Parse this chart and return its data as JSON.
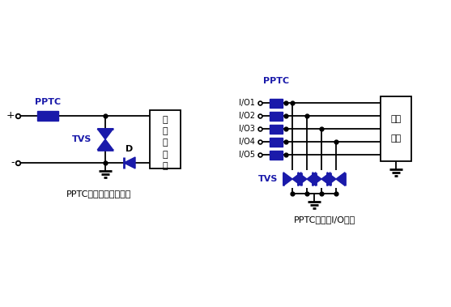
{
  "blue": "#1a1aaa",
  "line_color": "#000000",
  "bg_color": "#FFFFFF",
  "label1": "PPTC应用于电源线保护",
  "label2": "PPTC应用于I/O保护",
  "pptc_label": "PPTC",
  "tvs_label": "TVS",
  "box1_chars": [
    "被",
    "保",
    "护",
    "电",
    "路"
  ],
  "box2_chars": [
    "控制",
    "芯片"
  ],
  "d_label": "D",
  "io_labels": [
    "I/O1",
    "I/O2",
    "I/O3",
    "I/O4",
    "I/O5"
  ],
  "plus_label": "+",
  "minus_label": "-"
}
